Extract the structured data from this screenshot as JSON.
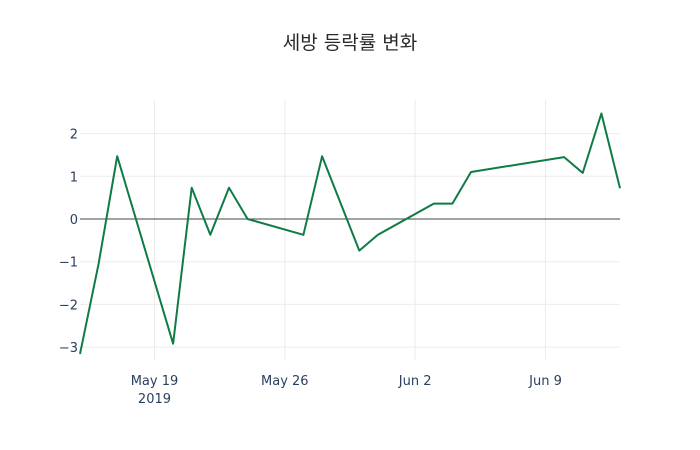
{
  "chart_data": {
    "type": "line",
    "title": "세방 등락률 변화",
    "xlabel": "",
    "ylabel": "",
    "x": [
      "2019-05-15",
      "2019-05-16",
      "2019-05-17",
      "2019-05-20",
      "2019-05-21",
      "2019-05-22",
      "2019-05-23",
      "2019-05-24",
      "2019-05-27",
      "2019-05-28",
      "2019-05-30",
      "2019-05-31",
      "2019-06-03",
      "2019-06-04",
      "2019-06-05",
      "2019-06-10",
      "2019-06-11",
      "2019-06-12",
      "2019-06-13"
    ],
    "series": [
      {
        "name": "등락률",
        "color": "#0f7b45",
        "values": [
          -3.16,
          -1.05,
          1.47,
          -2.92,
          0.73,
          -0.37,
          0.73,
          0.0,
          -0.37,
          1.47,
          -0.74,
          -0.37,
          0.36,
          0.36,
          1.1,
          1.45,
          1.08,
          2.47,
          0.72
        ]
      }
    ],
    "xticks": [
      {
        "date": "2019-05-19",
        "label": "May 19",
        "sublabel": "2019"
      },
      {
        "date": "2019-05-26",
        "label": "May 26",
        "sublabel": ""
      },
      {
        "date": "2019-06-02",
        "label": "Jun 2",
        "sublabel": ""
      },
      {
        "date": "2019-06-09",
        "label": "Jun 9",
        "sublabel": ""
      }
    ],
    "yticks": [
      2,
      1,
      0,
      -1,
      -2,
      -3
    ],
    "ytick_labels": [
      "2",
      "1",
      "0",
      "−1",
      "−2",
      "−3"
    ],
    "xlim": [
      "2019-05-15",
      "2019-06-13"
    ],
    "ylim": [
      -3.3,
      2.8
    ],
    "grid": true,
    "legend": "none"
  }
}
